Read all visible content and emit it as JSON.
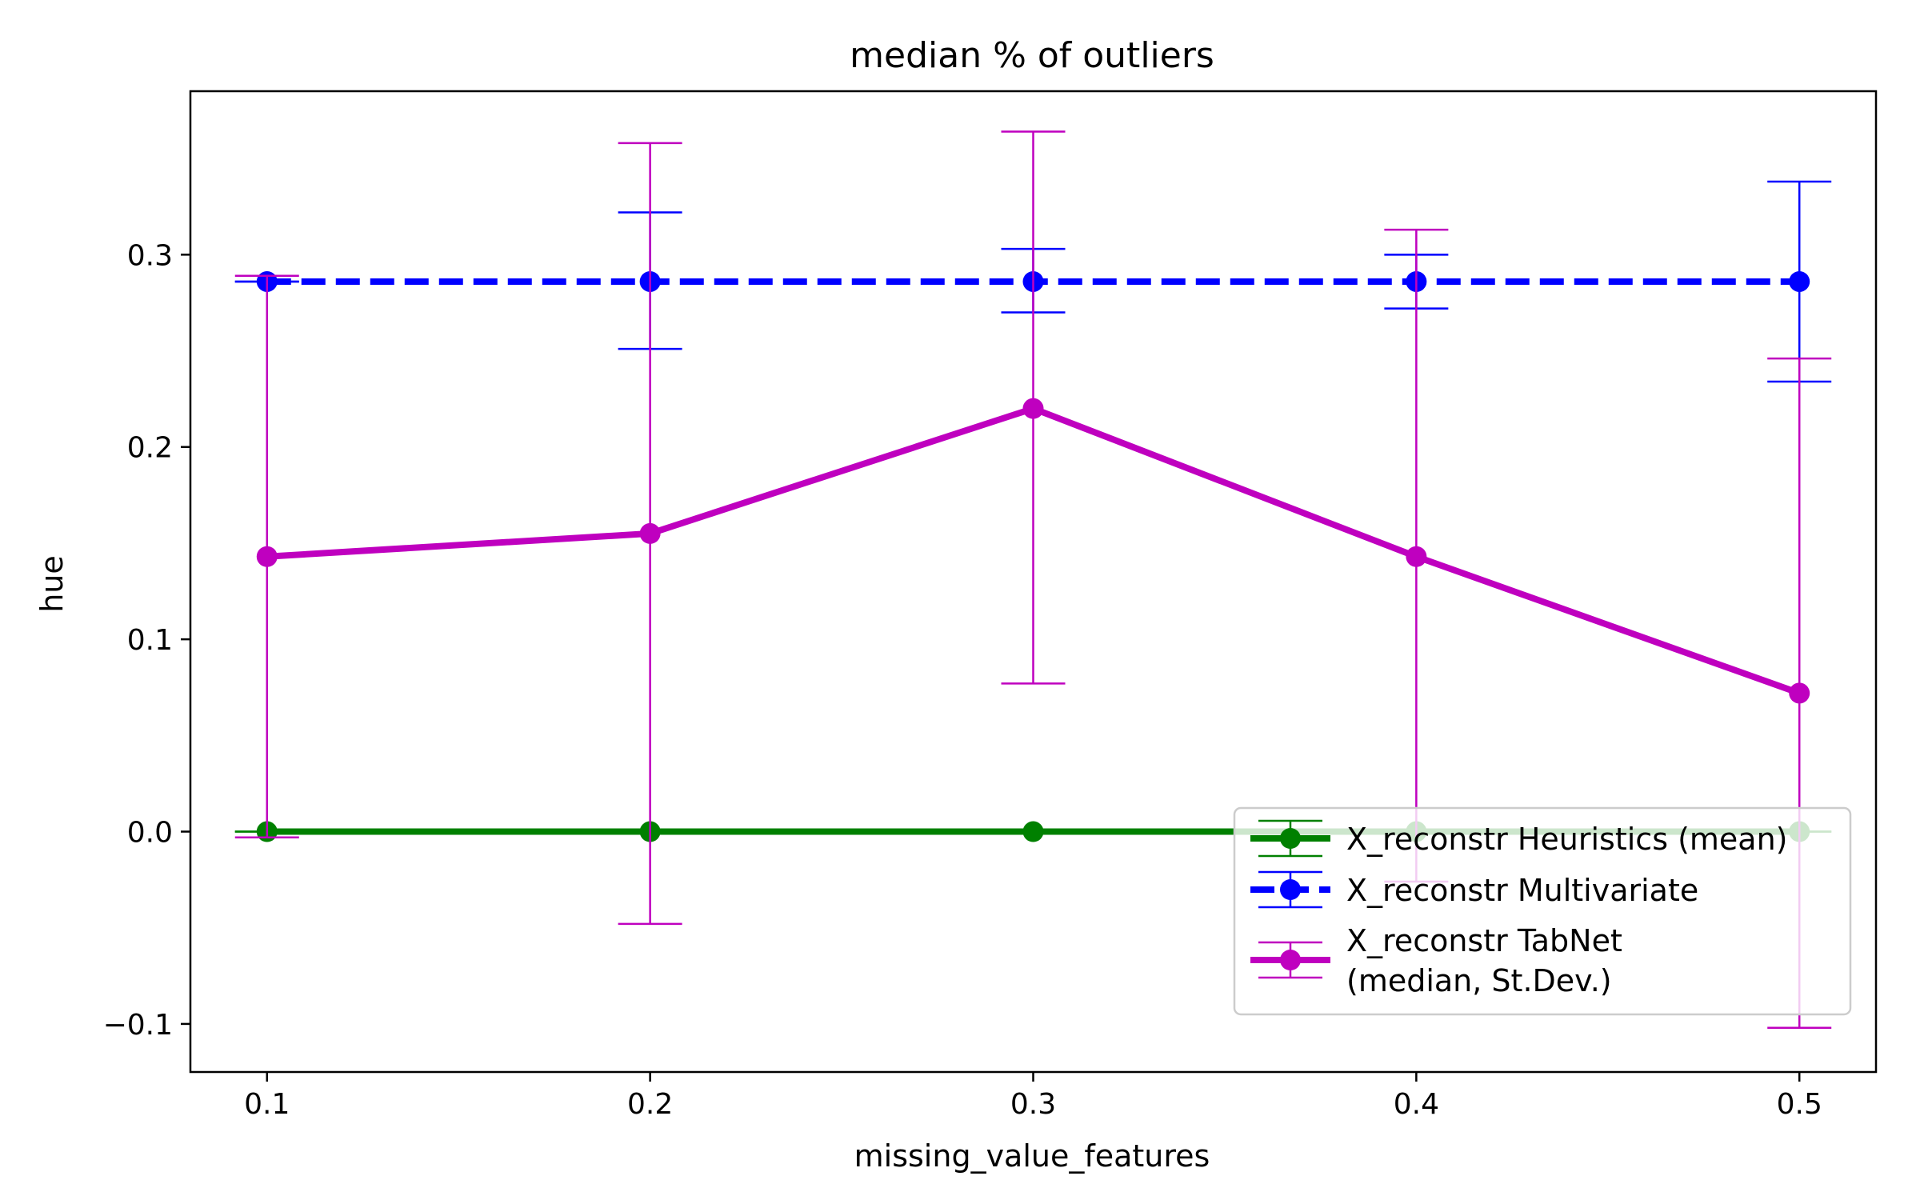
{
  "chart_data": {
    "type": "line",
    "title": "median % of outliers",
    "xlabel": "missing_value_features",
    "ylabel": "hue",
    "x": [
      0.1,
      0.2,
      0.3,
      0.4,
      0.5
    ],
    "xticks": [
      "0.1",
      "0.2",
      "0.3",
      "0.4",
      "0.5"
    ],
    "yticks": [
      -0.1,
      0.0,
      0.1,
      0.2,
      0.3
    ],
    "ytick_labels": [
      "−0.1",
      "0.0",
      "0.1",
      "0.2",
      "0.3"
    ],
    "xlim": [
      0.08,
      0.52
    ],
    "ylim": [
      -0.125,
      0.385
    ],
    "grid": false,
    "legend_position": "lower-right",
    "series": [
      {
        "name": "X_reconstr Heuristics (mean)",
        "color": "#008000",
        "line_style": "solid",
        "values": [
          0.0,
          0.0,
          0.0,
          0.0,
          0.0
        ],
        "err_low": [
          0.0,
          0.0,
          0.0,
          0.0,
          0.0
        ],
        "err_high": [
          0.0,
          0.0,
          0.0,
          0.0,
          0.0
        ]
      },
      {
        "name": "X_reconstr Multivariate",
        "color": "#0000ff",
        "line_style": "dashed",
        "values": [
          0.286,
          0.286,
          0.286,
          0.286,
          0.286
        ],
        "err_low": [
          0.286,
          0.251,
          0.27,
          0.272,
          0.234
        ],
        "err_high": [
          0.286,
          0.322,
          0.303,
          0.3,
          0.338
        ]
      },
      {
        "name": "X_reconstr TabNet\n(median, St.Dev.)",
        "color": "#bf00bf",
        "line_style": "solid",
        "values": [
          0.143,
          0.155,
          0.22,
          0.143,
          0.072
        ],
        "err_low": [
          -0.003,
          -0.048,
          0.077,
          -0.026,
          -0.102
        ],
        "err_high": [
          0.289,
          0.358,
          0.364,
          0.313,
          0.246
        ]
      }
    ],
    "legend_labels": [
      "X_reconstr Heuristics (mean)",
      "X_reconstr Multivariate",
      "X_reconstr TabNet",
      "(median, St.Dev.)"
    ]
  }
}
